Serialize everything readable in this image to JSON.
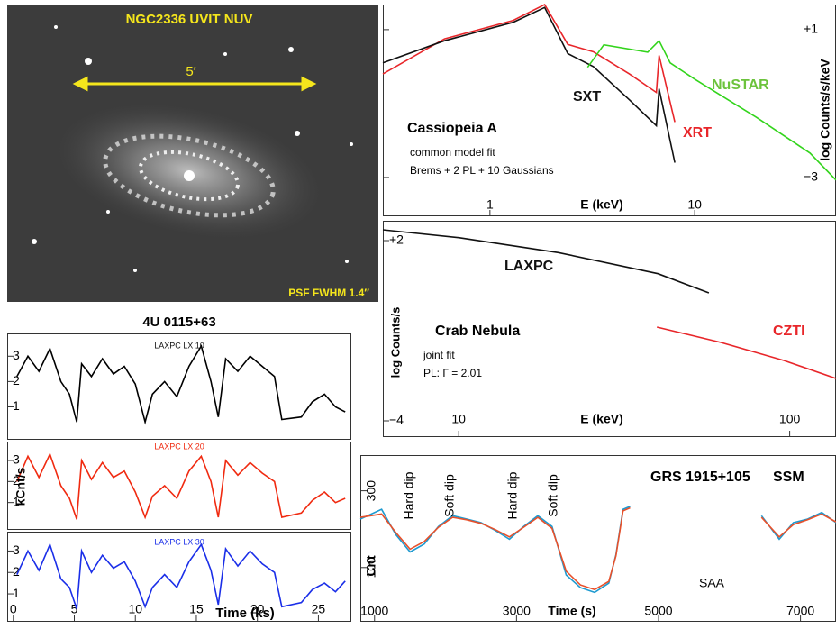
{
  "image_panel": {
    "title": "NGC2336 UVIT NUV",
    "scale_label": "5′",
    "psf_label": "PSF FWHM 1.4″"
  },
  "chart_data": [
    {
      "type": "line",
      "title": "Cassiopeia A",
      "subtitle": [
        "common model fit",
        "Brems + 2 PL + 10 Gaussians"
      ],
      "xlabel": "E (keV)",
      "ylabel": "log Counts/s/keV",
      "xscale": "log",
      "xlim": [
        0.3,
        49
      ],
      "ylim": [
        -4.05,
        1.68
      ],
      "xticks": [
        1,
        10
      ],
      "yticks": [
        {
          "value": 1,
          "label": "+1"
        },
        {
          "value": -3,
          "label": "−3"
        }
      ],
      "series": [
        {
          "name": "XRT",
          "color": "#e8262a",
          "x": [
            0.3,
            0.6,
            1.3,
            1.85,
            2.4,
            3.2,
            4.8,
            6.5,
            6.7,
            8
          ],
          "values": [
            -0.2,
            0.75,
            1.25,
            1.68,
            0.6,
            0.4,
            -0.2,
            -0.7,
            0.3,
            -1.5
          ]
        },
        {
          "name": "SXT",
          "color": "#111111",
          "x": [
            0.3,
            0.6,
            1.3,
            1.85,
            2.4,
            3.2,
            4.8,
            6.5,
            6.7,
            8
          ],
          "values": [
            0.1,
            0.7,
            1.2,
            1.6,
            0.35,
            0,
            -0.9,
            -1.6,
            -0.6,
            -2.6
          ]
        },
        {
          "name": "NuSTAR",
          "color": "#33d41c",
          "x": [
            3,
            3.6,
            5.9,
            6.7,
            7.6,
            10,
            20,
            36.6,
            49
          ],
          "values": [
            -0.02,
            0.59,
            0.39,
            0.7,
            0.1,
            -0.34,
            -1.37,
            -2.34,
            -3.07
          ]
        }
      ]
    },
    {
      "type": "line",
      "title": "Crab Nebula",
      "subtitle": [
        "joint fit",
        "PL: Γ = 2.01"
      ],
      "xlabel": "E (keV)",
      "ylabel": "log Counts/s",
      "xscale": "log",
      "xlim": [
        5.9,
        138
      ],
      "ylim": [
        -4.54,
        2.66
      ],
      "xticks": [
        10,
        100
      ],
      "yticks": [
        {
          "value": 2,
          "label": "+2"
        },
        {
          "value": -4,
          "label": "−4"
        }
      ],
      "series": [
        {
          "name": "LAXPC",
          "color": "#111111",
          "x": [
            5.9,
            10,
            20,
            40,
            57
          ],
          "values": [
            2.36,
            2.1,
            1.6,
            0.9,
            0.26
          ]
        },
        {
          "name": "CZTI",
          "color": "#e8262a",
          "x": [
            39.7,
            62,
            96,
            138
          ],
          "values": [
            -0.88,
            -1.39,
            -1.99,
            -2.59
          ]
        }
      ]
    },
    {
      "type": "line",
      "title": "4U 0115+63",
      "panel_label": "LAXPC LX 10",
      "xlim": [
        -0.5,
        27.7
      ],
      "ylim": [
        -0.3,
        3.9
      ],
      "yticks": [
        1,
        2,
        3
      ],
      "x": [
        0.3,
        1.2,
        2.1,
        3,
        3.9,
        4.6,
        5.2,
        5.6,
        6.4,
        7.3,
        8.2,
        9.1,
        10,
        10.8,
        11.4,
        12.4,
        13.4,
        14.4,
        15.4,
        16.2,
        16.8,
        17.4,
        18.4,
        19.4,
        20.4,
        21.4,
        22,
        23.6,
        24.5,
        25.5,
        26.4,
        27.2
      ],
      "series": [
        {
          "color": "#000000",
          "values": [
            2.2,
            3.0,
            2.4,
            3.3,
            2.0,
            1.5,
            0.4,
            2.7,
            2.2,
            2.9,
            2.3,
            2.6,
            1.9,
            0.4,
            1.5,
            2.0,
            1.4,
            2.6,
            3.4,
            2.0,
            0.6,
            2.9,
            2.4,
            3.0,
            2.6,
            2.2,
            0.5,
            0.6,
            1.2,
            1.5,
            1.0,
            0.8
          ]
        }
      ]
    },
    {
      "type": "line",
      "panel_label": "LAXPC LX 20",
      "ylabel": "kCnt/s",
      "xlim": [
        -0.5,
        27.7
      ],
      "ylim": [
        -0.3,
        3.9
      ],
      "yticks": [
        1,
        2,
        3
      ],
      "x": [
        0.3,
        1.2,
        2.1,
        3,
        3.9,
        4.6,
        5.2,
        5.6,
        6.4,
        7.3,
        8.2,
        9.1,
        10,
        10.8,
        11.4,
        12.4,
        13.4,
        14.4,
        15.4,
        16.2,
        16.8,
        17.4,
        18.4,
        19.4,
        20.4,
        21.4,
        22,
        23.6,
        24.5,
        25.5,
        26.4,
        27.2
      ],
      "series": [
        {
          "color": "#f02a10",
          "values": [
            2.0,
            3.2,
            2.2,
            3.3,
            1.8,
            1.2,
            0.2,
            3.0,
            2.1,
            2.9,
            2.2,
            2.5,
            1.5,
            0.3,
            1.3,
            1.8,
            1.2,
            2.5,
            3.2,
            2.0,
            0.3,
            3.0,
            2.3,
            2.9,
            2.4,
            2.0,
            0.3,
            0.5,
            1.1,
            1.5,
            1.0,
            1.2
          ]
        }
      ]
    },
    {
      "type": "line",
      "panel_label": "LAXPC LX 30",
      "xlabel": "Time (ks)",
      "xlim": [
        -0.5,
        27.7
      ],
      "ylim": [
        -0.3,
        3.9
      ],
      "yticks": [
        1,
        2,
        3
      ],
      "xticks": [
        0,
        5,
        10,
        15,
        20,
        25
      ],
      "x": [
        0.3,
        1.2,
        2.1,
        3,
        3.9,
        4.6,
        5.2,
        5.6,
        6.4,
        7.3,
        8.2,
        9.1,
        10,
        10.8,
        11.4,
        12.4,
        13.4,
        14.4,
        15.4,
        16.2,
        16.8,
        17.4,
        18.4,
        19.4,
        20.4,
        21.4,
        22,
        23.6,
        24.5,
        25.5,
        26.4,
        27.2
      ],
      "series": [
        {
          "color": "#1a2ee8",
          "values": [
            1.9,
            3.0,
            2.1,
            3.3,
            1.7,
            1.3,
            0.3,
            3.0,
            2.0,
            2.8,
            2.2,
            2.5,
            1.6,
            0.4,
            1.3,
            1.9,
            1.3,
            2.5,
            3.3,
            2.1,
            0.5,
            3.1,
            2.3,
            3.0,
            2.4,
            2.0,
            0.4,
            0.6,
            1.2,
            1.5,
            1.1,
            1.6
          ]
        }
      ]
    },
    {
      "type": "line",
      "title": "GRS 1915+105",
      "subtitle": [
        "SSM"
      ],
      "xlabel": "Time (s)",
      "ylabel": "Cnt",
      "annotations": [
        "Hard dip",
        "Soft dip",
        "Hard dip",
        "Soft dip",
        "SAA"
      ],
      "yscale": "log",
      "xlim": [
        800,
        7500
      ],
      "ylim": [
        46,
        500
      ],
      "xticks": [
        1000,
        3000,
        5000,
        7000
      ],
      "yticks": [
        100,
        300
      ],
      "x": [
        800,
        1100,
        1300,
        1500,
        1700,
        1900,
        2100,
        2300,
        2500,
        2700,
        2900,
        3100,
        3300,
        3500,
        3700,
        3900,
        4100,
        4300,
        4400,
        4500,
        4600,
        5500,
        6450,
        6700,
        6900,
        7100,
        7300,
        7500
      ],
      "series": [
        {
          "color": "#1e9ad0",
          "values": [
            200,
            230,
            160,
            125,
            140,
            180,
            210,
            200,
            190,
            170,
            150,
            180,
            210,
            180,
            90,
            75,
            70,
            80,
            120,
            230,
            240,
            null,
            210,
            150,
            190,
            200,
            220,
            190
          ]
        },
        {
          "color": "#e8502a",
          "values": [
            205,
            215,
            165,
            130,
            145,
            178,
            205,
            198,
            188,
            172,
            155,
            178,
            205,
            175,
            95,
            78,
            73,
            82,
            118,
            225,
            235,
            null,
            205,
            155,
            185,
            198,
            215,
            192
          ]
        }
      ]
    }
  ]
}
